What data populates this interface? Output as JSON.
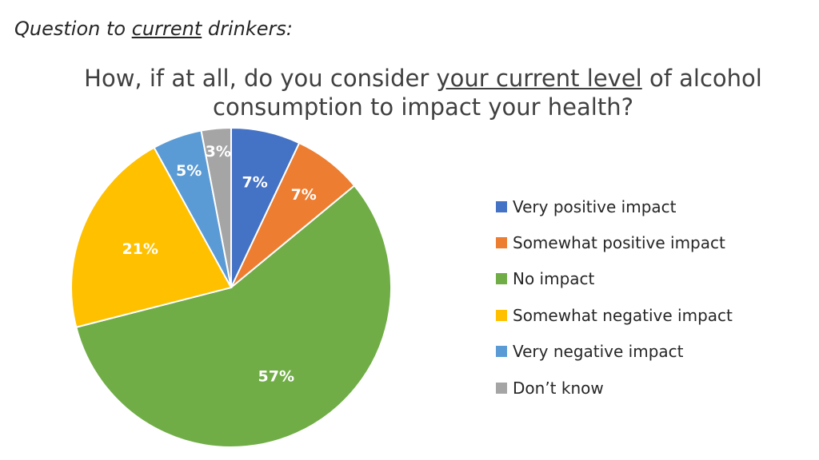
{
  "header": {
    "question_prefix": "Question to ",
    "question_emphasis": "current",
    "question_suffix": " drinkers:"
  },
  "chart_data": {
    "type": "pie",
    "title_part1": "How, if at all, do you consider ",
    "title_emphasis": "your current level",
    "title_part2": " of alcohol consumption to impact your health?",
    "slices": [
      {
        "label": "Very positive impact",
        "value": 7,
        "display": "7%",
        "color": "#4472C4"
      },
      {
        "label": "Somewhat positive impact",
        "value": 7,
        "display": "7%",
        "color": "#ED7D31"
      },
      {
        "label": "No impact",
        "value": 57,
        "display": "57%",
        "color": "#70AD47"
      },
      {
        "label": "Somewhat negative impact",
        "value": 21,
        "display": "21%",
        "color": "#FFC000"
      },
      {
        "label": "Very negative impact",
        "value": 5,
        "display": "5%",
        "color": "#5B9BD5"
      },
      {
        "label": "Don’t know",
        "value": 3,
        "display": "3%",
        "color": "#A5A5A5"
      }
    ],
    "legend_position": "right"
  }
}
